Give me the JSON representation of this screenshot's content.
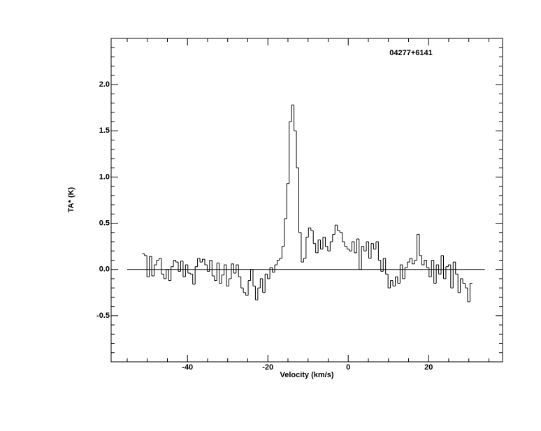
{
  "chart_data": {
    "type": "step",
    "title": "04277+6141",
    "xlabel": "Velocity (km/s)",
    "ylabel": "TA* (K)",
    "x": [
      -51,
      -50.4,
      -49.8,
      -49.2,
      -48.6,
      -48,
      -47.4,
      -46.8,
      -46.2,
      -45.6,
      -45,
      -44.4,
      -43.8,
      -43.2,
      -42.6,
      -42,
      -41.4,
      -40.8,
      -40.2,
      -39.6,
      -39,
      -38.4,
      -37.8,
      -37.2,
      -36.6,
      -36,
      -35.4,
      -34.8,
      -34.2,
      -33.6,
      -33,
      -32.4,
      -31.8,
      -31.2,
      -30.6,
      -30,
      -29.4,
      -28.8,
      -28.2,
      -27.6,
      -27,
      -26.4,
      -25.8,
      -25.2,
      -24.6,
      -24,
      -23.4,
      -22.8,
      -22.2,
      -21.6,
      -21,
      -20.4,
      -19.8,
      -19.2,
      -18.6,
      -18,
      -17.4,
      -16.8,
      -16.2,
      -15.6,
      -15,
      -14.4,
      -13.8,
      -13.2,
      -12.6,
      -12,
      -11.4,
      -10.8,
      -10.2,
      -9.6,
      -9,
      -8.4,
      -7.8,
      -7.2,
      -6.6,
      -6,
      -5.4,
      -4.8,
      -4.2,
      -3.6,
      -3,
      -2.4,
      -1.8,
      -1.2,
      -0.6,
      0,
      0.6,
      1.2,
      1.8,
      2.4,
      3,
      3.6,
      4.2,
      4.8,
      5.4,
      6,
      6.6,
      7.2,
      7.8,
      8.4,
      9,
      9.6,
      10.2,
      10.8,
      11.4,
      12,
      12.6,
      13.2,
      13.8,
      14.4,
      15,
      15.6,
      16.2,
      16.8,
      17.4,
      18,
      18.6,
      19.2,
      19.8,
      20.4,
      21,
      21.6,
      22.2,
      22.8,
      23.4,
      24,
      24.6,
      25.2,
      25.8,
      26.4,
      27,
      27.6,
      28.2,
      28.8,
      29.4,
      30,
      30.6
    ],
    "values": [
      0.17,
      0.15,
      -0.08,
      0.14,
      -0.07,
      0.05,
      0.1,
      0.12,
      -0.05,
      -0.1,
      0.0,
      -0.12,
      0.03,
      0.1,
      0.08,
      -0.02,
      0.09,
      -0.08,
      0.05,
      -0.04,
      -0.05,
      -0.16,
      0.03,
      0.12,
      0.08,
      0.11,
      0.05,
      -0.02,
      0.1,
      -0.07,
      -0.12,
      0.07,
      -0.15,
      -0.06,
      0.05,
      -0.18,
      -0.1,
      0.06,
      -0.04,
      0.05,
      -0.08,
      -0.2,
      -0.25,
      -0.28,
      -0.12,
      0.0,
      -0.18,
      -0.33,
      -0.2,
      -0.1,
      -0.25,
      -0.05,
      -0.1,
      0.02,
      -0.03,
      0.05,
      0.1,
      0.12,
      0.25,
      0.55,
      0.93,
      1.6,
      1.78,
      1.5,
      1.1,
      0.4,
      0.08,
      0.12,
      0.35,
      0.45,
      0.42,
      0.28,
      0.18,
      0.32,
      0.22,
      0.35,
      0.25,
      0.2,
      0.3,
      0.38,
      0.48,
      0.42,
      0.4,
      0.3,
      0.25,
      0.22,
      0.2,
      0.3,
      0.18,
      0.33,
      0.0,
      0.25,
      0.2,
      0.3,
      0.12,
      0.28,
      0.22,
      0.3,
      0.1,
      -0.02,
      0.12,
      -0.05,
      -0.2,
      -0.12,
      -0.18,
      -0.08,
      -0.15,
      0.05,
      -0.1,
      0.02,
      0.08,
      0.12,
      0.06,
      0.1,
      0.38,
      0.15,
      0.05,
      0.1,
      0.02,
      -0.08,
      0.1,
      -0.15,
      0.05,
      -0.05,
      0.15,
      -0.1,
      0.03,
      0.05,
      -0.2,
      0.08,
      -0.05,
      -0.25,
      -0.1,
      -0.15,
      -0.2,
      -0.35,
      -0.15
    ],
    "channel_width": 0.6,
    "color": "#000000",
    "xlim": [
      -59,
      38.4
    ],
    "ylim": [
      -1,
      2.5
    ],
    "xticks": [
      -40,
      -20,
      0,
      20
    ],
    "yticks": [
      -0.5,
      0.0,
      0.5,
      1.0,
      1.5,
      2.0
    ],
    "xminorticks": [
      -55,
      -50,
      -45,
      -35,
      -30,
      -25,
      -15,
      -10,
      -5,
      5,
      10,
      15,
      25,
      30,
      35
    ],
    "yminorticks": [
      -0.9,
      -0.8,
      -0.7,
      -0.6,
      -0.4,
      -0.3,
      -0.2,
      -0.1,
      0.1,
      0.2,
      0.3,
      0.4,
      0.6,
      0.7,
      0.8,
      0.9,
      1.1,
      1.2,
      1.3,
      1.4,
      1.6,
      1.7,
      1.8,
      1.9,
      2.1,
      2.2,
      2.3,
      2.4
    ],
    "hline": 0,
    "hline_xrange": [
      -55,
      34
    ]
  }
}
